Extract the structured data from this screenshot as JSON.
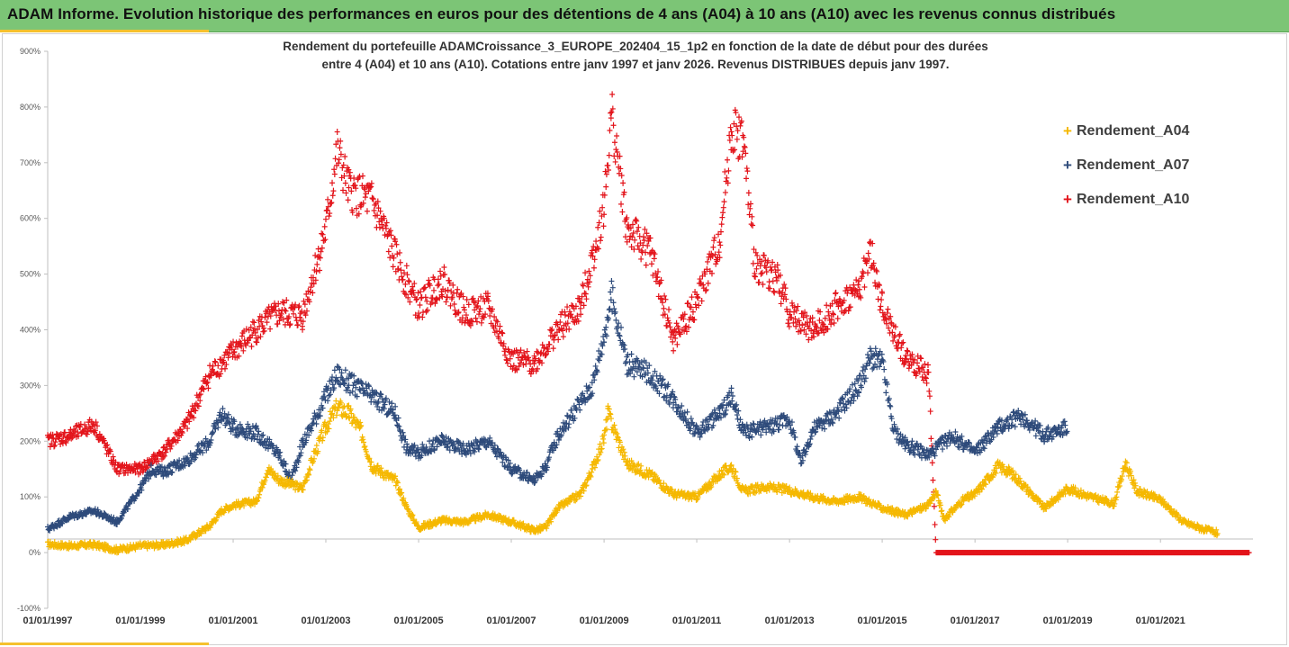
{
  "header": {
    "title": "ADAM Informe. Evolution historique des performances en euros pour des détentions de 4 ans (A04) à 10 ans (A10) avec les revenus connus distribués"
  },
  "colors": {
    "banner": "#7cc576",
    "accent": "#f5c12e",
    "A04": "#f5b800",
    "A07": "#2e4b7b",
    "A10": "#e3141b"
  },
  "chart_data": {
    "type": "scatter",
    "title_line1": "Rendement du portefeuille ADAMCroissance_3_EUROPE_202404_15_1p2  en fonction de la date de début pour des durées",
    "title_line2": "entre 4 (A04) et 10 ans (A10). Cotations entre janv 1997 et janv 2026. Revenus DISTRIBUES depuis janv 1997.",
    "xlabel": "",
    "ylabel": "",
    "x_range": [
      "1997-01-01",
      "2022-12-31"
    ],
    "ylim": [
      -100,
      900
    ],
    "y_ticks": [
      "-100%",
      "0%",
      "100%",
      "200%",
      "300%",
      "400%",
      "500%",
      "600%",
      "700%",
      "800%",
      "900%"
    ],
    "x_ticks": [
      "01/01/1997",
      "01/01/1999",
      "01/01/2001",
      "01/01/2003",
      "01/01/2005",
      "01/01/2007",
      "01/01/2009",
      "01/01/2011",
      "01/01/2013",
      "01/01/2015",
      "01/01/2017",
      "01/01/2019",
      "01/01/2021"
    ],
    "legend_position": "right",
    "grid": false,
    "marker": "+",
    "series": [
      {
        "name": "Rendement_A04",
        "key": "A04",
        "points": [
          [
            "1997-01-01",
            15
          ],
          [
            "1997-07-01",
            12
          ],
          [
            "1998-01-01",
            14
          ],
          [
            "1998-07-01",
            5
          ],
          [
            "1999-01-01",
            12
          ],
          [
            "1999-07-01",
            14
          ],
          [
            "2000-01-01",
            22
          ],
          [
            "2000-07-01",
            48
          ],
          [
            "2000-10-01",
            75
          ],
          [
            "2001-01-01",
            85
          ],
          [
            "2001-07-01",
            92
          ],
          [
            "2001-10-01",
            150
          ],
          [
            "2002-01-01",
            130
          ],
          [
            "2002-07-01",
            115
          ],
          [
            "2002-10-01",
            175
          ],
          [
            "2003-01-01",
            225
          ],
          [
            "2003-04-01",
            262
          ],
          [
            "2003-07-01",
            250
          ],
          [
            "2003-10-01",
            220
          ],
          [
            "2004-01-01",
            155
          ],
          [
            "2004-07-01",
            130
          ],
          [
            "2004-10-01",
            80
          ],
          [
            "2005-01-01",
            45
          ],
          [
            "2005-07-01",
            58
          ],
          [
            "2006-01-01",
            55
          ],
          [
            "2006-07-01",
            68
          ],
          [
            "2007-01-01",
            55
          ],
          [
            "2007-07-01",
            40
          ],
          [
            "2007-10-01",
            45
          ],
          [
            "2008-01-01",
            80
          ],
          [
            "2008-07-01",
            105
          ],
          [
            "2008-10-01",
            150
          ],
          [
            "2009-01-01",
            205
          ],
          [
            "2009-02-01",
            250
          ],
          [
            "2009-07-01",
            160
          ],
          [
            "2010-01-01",
            140
          ],
          [
            "2010-07-01",
            105
          ],
          [
            "2011-01-01",
            100
          ],
          [
            "2011-07-01",
            140
          ],
          [
            "2011-10-01",
            155
          ],
          [
            "2012-01-01",
            110
          ],
          [
            "2012-07-01",
            118
          ],
          [
            "2013-01-01",
            112
          ],
          [
            "2013-07-01",
            100
          ],
          [
            "2014-01-01",
            92
          ],
          [
            "2014-07-01",
            100
          ],
          [
            "2015-01-01",
            80
          ],
          [
            "2015-07-01",
            68
          ],
          [
            "2016-01-01",
            85
          ],
          [
            "2016-03-01",
            110
          ],
          [
            "2016-05-01",
            60
          ],
          [
            "2016-10-01",
            95
          ],
          [
            "2017-01-01",
            105
          ],
          [
            "2017-07-01",
            155
          ],
          [
            "2017-10-01",
            145
          ],
          [
            "2018-01-01",
            125
          ],
          [
            "2018-07-01",
            80
          ],
          [
            "2019-01-01",
            115
          ],
          [
            "2019-07-01",
            100
          ],
          [
            "2020-01-01",
            88
          ],
          [
            "2020-04-01",
            160
          ],
          [
            "2020-07-01",
            110
          ],
          [
            "2021-01-01",
            95
          ],
          [
            "2021-07-01",
            55
          ],
          [
            "2022-01-01",
            40
          ],
          [
            "2022-04-01",
            35
          ]
        ]
      },
      {
        "name": "Rendement_A07",
        "key": "A07",
        "points": [
          [
            "1997-01-01",
            42
          ],
          [
            "1997-07-01",
            65
          ],
          [
            "1998-01-01",
            75
          ],
          [
            "1998-07-01",
            55
          ],
          [
            "1999-01-01",
            115
          ],
          [
            "1999-04-01",
            150
          ],
          [
            "1999-07-01",
            145
          ],
          [
            "2000-01-01",
            165
          ],
          [
            "2000-07-01",
            200
          ],
          [
            "2000-10-01",
            250
          ],
          [
            "2001-01-01",
            225
          ],
          [
            "2001-07-01",
            215
          ],
          [
            "2002-01-01",
            175
          ],
          [
            "2002-04-01",
            130
          ],
          [
            "2002-07-01",
            195
          ],
          [
            "2003-01-01",
            280
          ],
          [
            "2003-04-01",
            320
          ],
          [
            "2003-07-01",
            305
          ],
          [
            "2004-01-01",
            280
          ],
          [
            "2004-07-01",
            250
          ],
          [
            "2004-10-01",
            185
          ],
          [
            "2005-01-01",
            180
          ],
          [
            "2005-07-01",
            200
          ],
          [
            "2006-01-01",
            185
          ],
          [
            "2006-07-01",
            200
          ],
          [
            "2007-01-01",
            150
          ],
          [
            "2007-07-01",
            130
          ],
          [
            "2007-10-01",
            155
          ],
          [
            "2008-01-01",
            210
          ],
          [
            "2008-07-01",
            270
          ],
          [
            "2008-10-01",
            300
          ],
          [
            "2009-01-01",
            390
          ],
          [
            "2009-03-01",
            460
          ],
          [
            "2009-07-01",
            340
          ],
          [
            "2010-01-01",
            320
          ],
          [
            "2010-07-01",
            275
          ],
          [
            "2011-01-01",
            215
          ],
          [
            "2011-07-01",
            250
          ],
          [
            "2011-10-01",
            280
          ],
          [
            "2012-01-01",
            215
          ],
          [
            "2012-07-01",
            225
          ],
          [
            "2013-01-01",
            240
          ],
          [
            "2013-04-01",
            160
          ],
          [
            "2013-07-01",
            220
          ],
          [
            "2014-01-01",
            250
          ],
          [
            "2014-07-01",
            300
          ],
          [
            "2014-10-01",
            350
          ],
          [
            "2015-01-01",
            340
          ],
          [
            "2015-04-01",
            220
          ],
          [
            "2015-07-01",
            195
          ],
          [
            "2016-01-01",
            175
          ],
          [
            "2016-07-01",
            210
          ],
          [
            "2017-01-01",
            180
          ],
          [
            "2017-07-01",
            225
          ],
          [
            "2018-01-01",
            245
          ],
          [
            "2018-07-01",
            210
          ],
          [
            "2019-01-01",
            225
          ]
        ]
      },
      {
        "name": "Rendement_A10",
        "key": "A10",
        "points": [
          [
            "1997-01-01",
            200
          ],
          [
            "1997-07-01",
            210
          ],
          [
            "1998-01-01",
            230
          ],
          [
            "1998-07-01",
            150
          ],
          [
            "1999-01-01",
            150
          ],
          [
            "1999-07-01",
            180
          ],
          [
            "2000-01-01",
            230
          ],
          [
            "2000-07-01",
            320
          ],
          [
            "2001-01-01",
            360
          ],
          [
            "2001-07-01",
            400
          ],
          [
            "2002-01-01",
            430
          ],
          [
            "2002-07-01",
            425
          ],
          [
            "2003-01-01",
            580
          ],
          [
            "2003-04-01",
            720
          ],
          [
            "2003-07-01",
            650
          ],
          [
            "2004-01-01",
            630
          ],
          [
            "2004-07-01",
            530
          ],
          [
            "2005-01-01",
            440
          ],
          [
            "2005-07-01",
            490
          ],
          [
            "2006-01-01",
            430
          ],
          [
            "2006-07-01",
            440
          ],
          [
            "2007-01-01",
            345
          ],
          [
            "2007-07-01",
            340
          ],
          [
            "2008-01-01",
            400
          ],
          [
            "2008-07-01",
            440
          ],
          [
            "2009-01-01",
            620
          ],
          [
            "2009-03-01",
            790
          ],
          [
            "2009-07-01",
            580
          ],
          [
            "2010-01-01",
            540
          ],
          [
            "2010-07-01",
            380
          ],
          [
            "2011-01-01",
            450
          ],
          [
            "2011-07-01",
            560
          ],
          [
            "2011-10-01",
            760
          ],
          [
            "2012-01-01",
            740
          ],
          [
            "2012-04-01",
            520
          ],
          [
            "2012-10-01",
            490
          ],
          [
            "2013-01-01",
            430
          ],
          [
            "2013-07-01",
            400
          ],
          [
            "2014-01-01",
            440
          ],
          [
            "2014-07-01",
            470
          ],
          [
            "2014-10-01",
            540
          ],
          [
            "2015-01-01",
            440
          ],
          [
            "2015-07-01",
            350
          ],
          [
            "2016-01-01",
            320
          ],
          [
            "2016-03-01",
            0
          ],
          [
            "2022-12-01",
            0
          ]
        ]
      }
    ]
  }
}
